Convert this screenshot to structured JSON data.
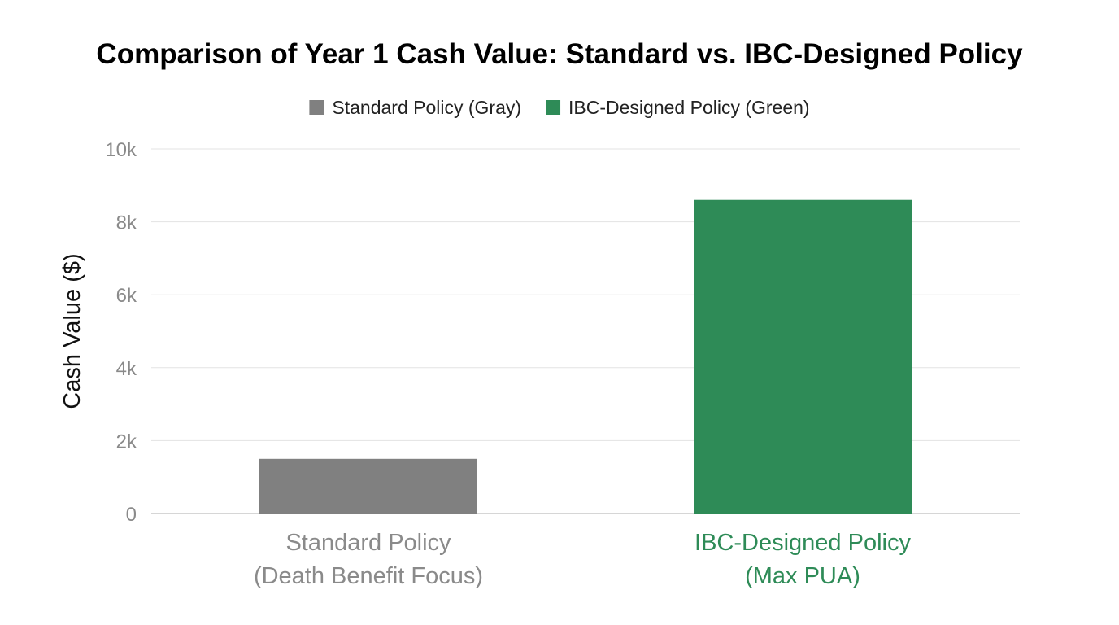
{
  "chart_data": {
    "type": "bar",
    "title": "Comparison of Year 1 Cash Value: Standard vs. IBC-Designed Policy",
    "ylabel": "Cash Value ($)",
    "xlabel": "",
    "ylim": [
      0,
      10000
    ],
    "yticks": [
      0,
      2000,
      4000,
      6000,
      8000,
      10000
    ],
    "ytick_labels": [
      "0",
      "2k",
      "4k",
      "6k",
      "8k",
      "10k"
    ],
    "grid": true,
    "legend_position": "top-center",
    "legend": [
      {
        "label": "Standard Policy (Gray)",
        "color": "#808080"
      },
      {
        "label": "IBC-Designed Policy (Green)",
        "color": "#2e8b57"
      }
    ],
    "categories": [
      {
        "lines": [
          "Standard Policy",
          "(Death Benefit Focus)"
        ],
        "value": 1500,
        "color": "#808080",
        "label_color": "#8a8a8a"
      },
      {
        "lines": [
          "IBC-Designed Policy",
          "(Max PUA)"
        ],
        "value": 8600,
        "color": "#2e8b57",
        "label_color": "#2e8b57"
      }
    ]
  }
}
